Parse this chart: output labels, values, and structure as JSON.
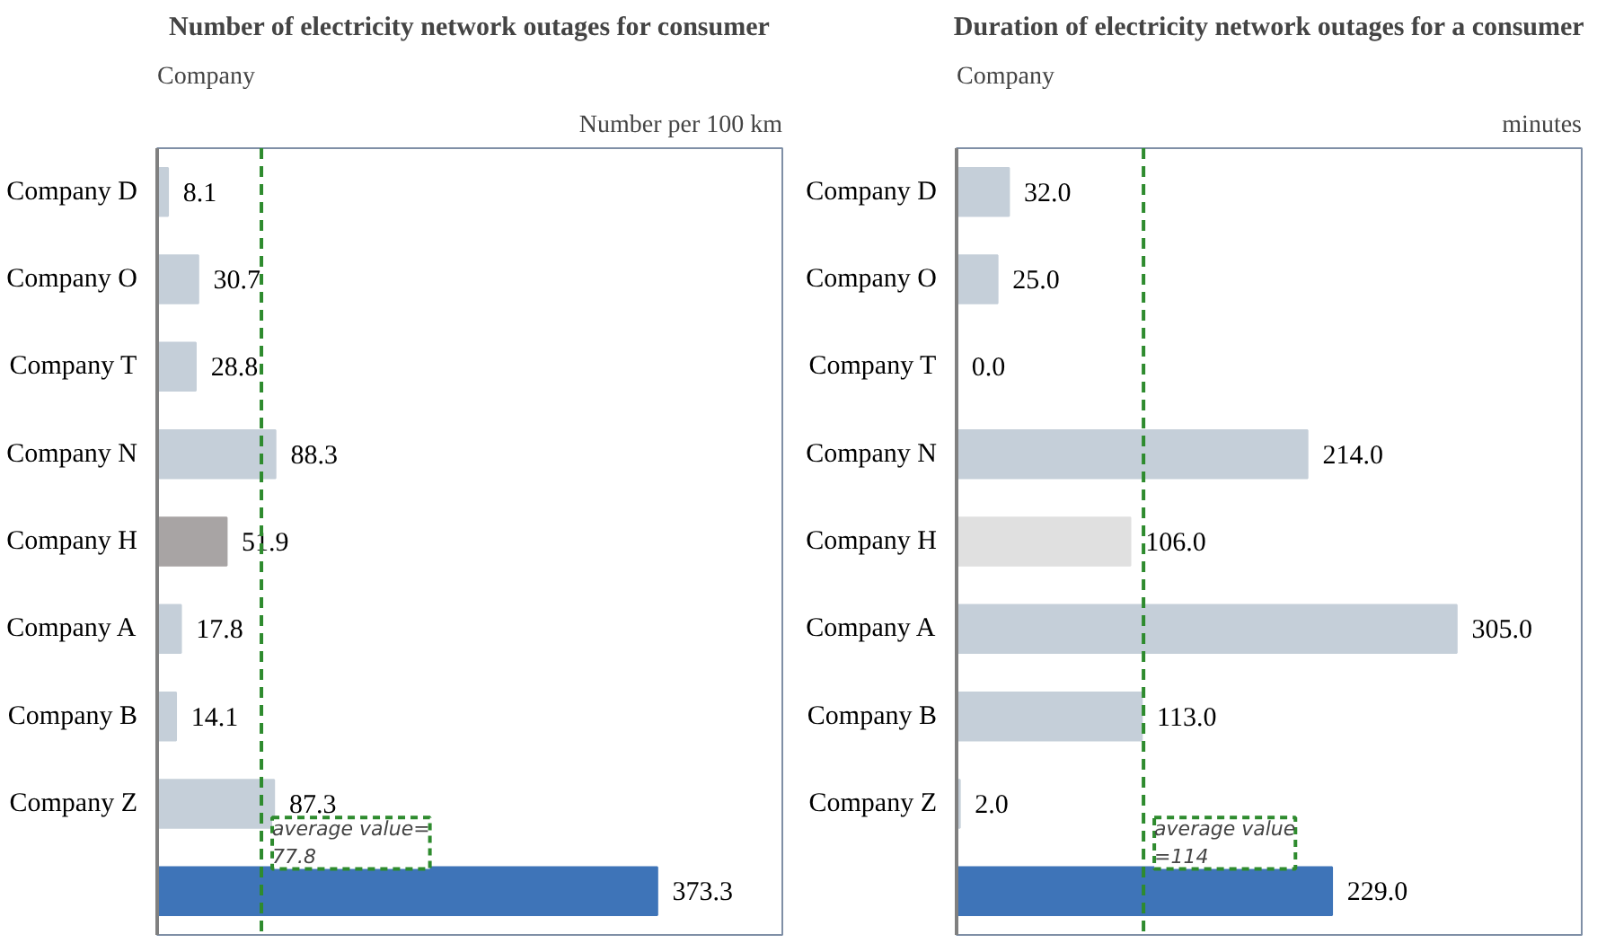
{
  "chart_data": [
    {
      "type": "bar",
      "orientation": "horizontal",
      "title": "Number of electricity network outages for consumer",
      "xlabel": "Number per 100 km",
      "ylabel": "Company",
      "categories": [
        "Company D",
        "Company O",
        "Company T",
        "Company N",
        "Company H",
        "Company A",
        "Company B",
        "Company Z",
        null
      ],
      "values": [
        8.1,
        30.7,
        28.8,
        88.3,
        51.9,
        17.8,
        14.1,
        87.3,
        373.3
      ],
      "colors": [
        "#c5cfd9",
        "#c5cfd9",
        "#c5cfd9",
        "#c5cfd9",
        "#a8a4a4",
        "#c5cfd9",
        "#c5cfd9",
        "#c5cfd9",
        "#3e74b8"
      ],
      "value_labels": [
        "8.1",
        "30.7",
        "28.8",
        "88.3",
        "51.9",
        "17.8",
        "14.1",
        "87.3",
        "373.3"
      ],
      "grid": false,
      "ref_lines": [
        {
          "axis": "x",
          "value": 77.8,
          "label": "average value=\n77.8",
          "color": "#2e8b2e",
          "line_style": "dashed"
        }
      ]
    },
    {
      "type": "bar",
      "orientation": "horizontal",
      "title": "Duration of electricity network outages for a consumer",
      "xlabel": "minutes",
      "ylabel": "Company",
      "categories": [
        "Company D",
        "Company O",
        "Company T",
        "Company N",
        "Company H",
        "Company A",
        "Company B",
        "Company Z",
        null
      ],
      "values": [
        32.0,
        25.0,
        0.0,
        214.0,
        106.0,
        305.0,
        113.0,
        2.0,
        229.0
      ],
      "colors": [
        "#c5cfd9",
        "#c5cfd9",
        "#c5cfd9",
        "#c5cfd9",
        "#e0e0e0",
        "#c5cfd9",
        "#c5cfd9",
        "#c5cfd9",
        "#3e74b8"
      ],
      "value_labels": [
        "32.0",
        "25.0",
        "0.0",
        "214.0",
        "106.0",
        "305.0",
        "113.0",
        "2.0",
        "229.0"
      ],
      "grid": false,
      "ref_lines": [
        {
          "axis": "x",
          "value": 114,
          "label": "average value\n=114",
          "color": "#2e8b2e",
          "line_style": "dashed"
        }
      ]
    }
  ]
}
